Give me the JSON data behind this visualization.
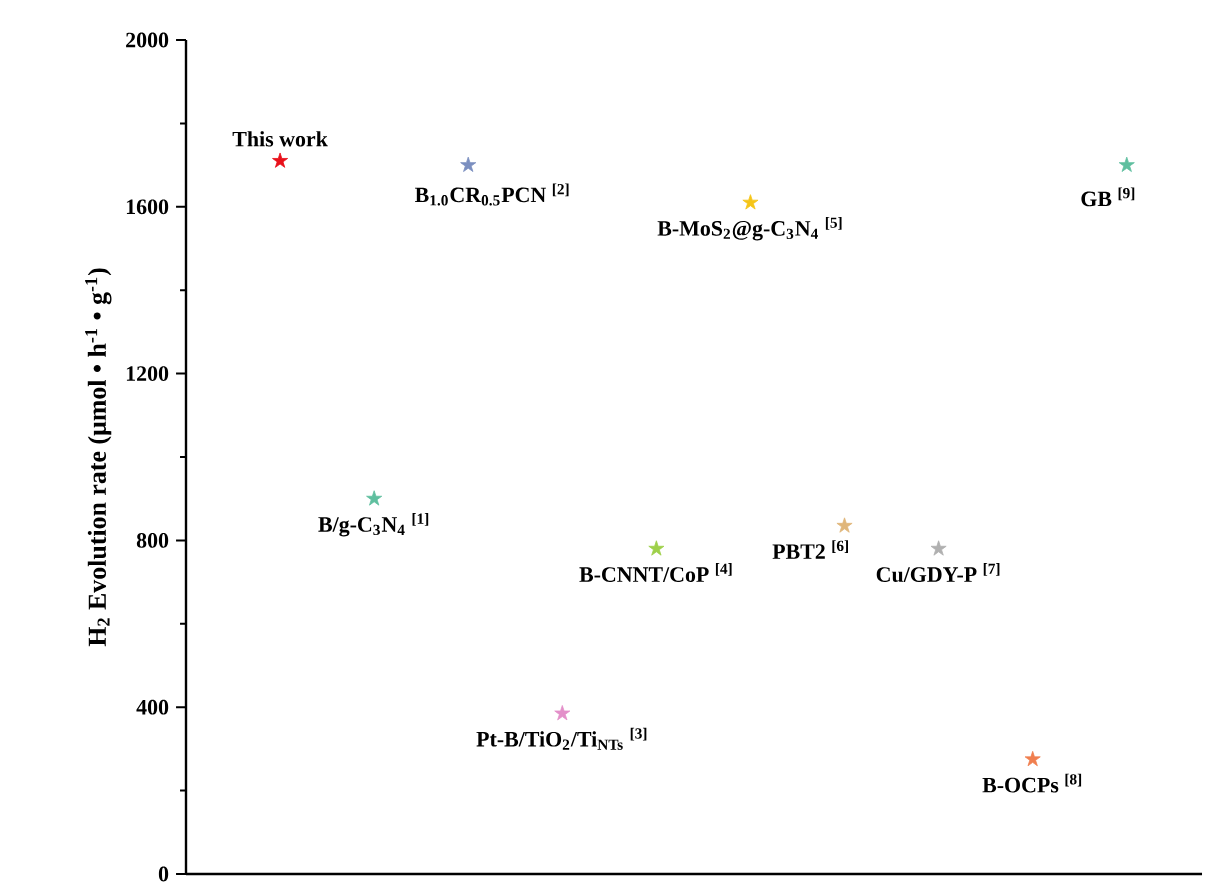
{
  "chart_data": {
    "type": "scatter",
    "ylabel": "H$_{2}$ Evolution rate (μmol • h$^{-1}$ • g$^{-1}$)",
    "categories": [
      null,
      null,
      null,
      null,
      null,
      null,
      null,
      null,
      null,
      null
    ],
    "ylim": [
      0,
      2000
    ],
    "yticks": [
      0,
      400,
      800,
      1200,
      1600,
      2000
    ],
    "tick_labels": "y",
    "marker": "star",
    "series": [
      {
        "name": "This work",
        "color": "#e8101a",
        "values": [
          1710,
          null,
          null,
          null,
          null,
          null,
          null,
          null,
          null,
          null
        ]
      },
      {
        "name": "B/g-C$_{3}$N$_{4}$ $^{[1]}$",
        "color": "#5fbf9f",
        "values": [
          null,
          900,
          null,
          null,
          null,
          null,
          null,
          null,
          null,
          null
        ]
      },
      {
        "name": "B$_{1.0}$CR$_{0.5}$PCN $^{[2]}$",
        "color": "#7b8fc0",
        "values": [
          null,
          null,
          1700,
          null,
          null,
          null,
          null,
          null,
          null,
          null
        ]
      },
      {
        "name": "Pt-B/TiO$_{2}$/Ti$_{NTs}$ $^{[3]}$",
        "color": "#e38fc9",
        "values": [
          null,
          null,
          null,
          385,
          null,
          null,
          null,
          null,
          null,
          null
        ]
      },
      {
        "name": "B-CNNT/CoP $^{[4]}$",
        "color": "#9ed04a",
        "values": [
          null,
          null,
          null,
          null,
          780,
          null,
          null,
          null,
          null,
          null
        ]
      },
      {
        "name": "B-MoS$_{2}$@g-C$_{3}$N$_{4}$ $^{[5]}$",
        "color": "#f5c518",
        "values": [
          null,
          null,
          null,
          null,
          null,
          1610,
          null,
          null,
          null,
          null
        ]
      },
      {
        "name": "PBT2 $^{[6]}$",
        "color": "#e0b67a",
        "values": [
          null,
          null,
          null,
          null,
          null,
          null,
          835,
          null,
          null,
          null
        ]
      },
      {
        "name": "Cu/GDY-P $^{[7]}$",
        "color": "#b0b0b0",
        "values": [
          null,
          null,
          null,
          null,
          null,
          null,
          null,
          780,
          null,
          null
        ]
      },
      {
        "name": "B-OCPs $^{[8]}$",
        "color": "#f07f4f",
        "values": [
          null,
          null,
          null,
          null,
          null,
          null,
          null,
          null,
          275,
          null
        ]
      },
      {
        "name": "GB $^{[9]}$",
        "color": "#5fbf9f",
        "values": [
          null,
          null,
          null,
          null,
          null,
          null,
          null,
          null,
          null,
          1700
        ]
      }
    ]
  }
}
